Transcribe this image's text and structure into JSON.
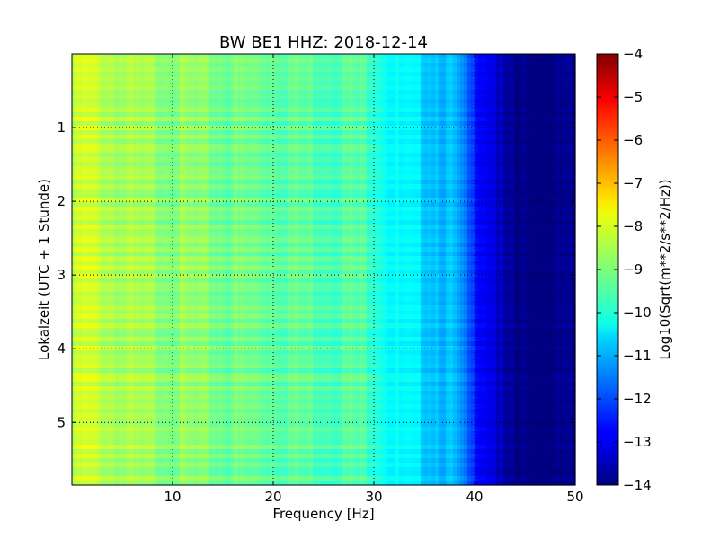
{
  "chart_data": {
    "type": "heatmap",
    "title": "BW BE1 HHZ: 2018-12-14",
    "xlabel": "Frequency [Hz]",
    "ylabel": "Lokalzeit (UTC + 1 Stunde)",
    "colorbar_label": "Log10(Sqrt(m**2/s**2/Hz))",
    "xlim": [
      0,
      50
    ],
    "ylim": [
      5.85,
      0
    ],
    "clim": [
      -14,
      -4
    ],
    "colormap": "jet",
    "grid": true,
    "x_ticks": [
      10,
      20,
      30,
      40,
      50
    ],
    "x_tick_labels": [
      "10",
      "20",
      "30",
      "40",
      "50"
    ],
    "y_ticks": [
      1,
      2,
      3,
      4,
      5
    ],
    "y_tick_labels": [
      "1",
      "2",
      "3",
      "4",
      "5"
    ],
    "colorbar_ticks": [
      -14,
      -13,
      -12,
      -11,
      -10,
      -9,
      -8,
      -7,
      -6,
      -5,
      -4
    ],
    "colorbar_tick_labels": [
      "−14",
      "−13",
      "−12",
      "−11",
      "−10",
      "−9",
      "−8",
      "−7",
      "−6",
      "−5",
      "−4"
    ],
    "spectrum_profile": {
      "frequency_hz": [
        0,
        1,
        3,
        6,
        10,
        15,
        20,
        25,
        28,
        30,
        32,
        35,
        38,
        40,
        42,
        43,
        44,
        50
      ],
      "log10_psd": [
        -8.6,
        -8.2,
        -8.4,
        -8.7,
        -8.8,
        -9.1,
        -9.2,
        -9.4,
        -9.4,
        -9.6,
        -10.3,
        -10.6,
        -11.0,
        -12.4,
        -13.0,
        -13.8,
        -14.0,
        -14.0
      ]
    }
  }
}
